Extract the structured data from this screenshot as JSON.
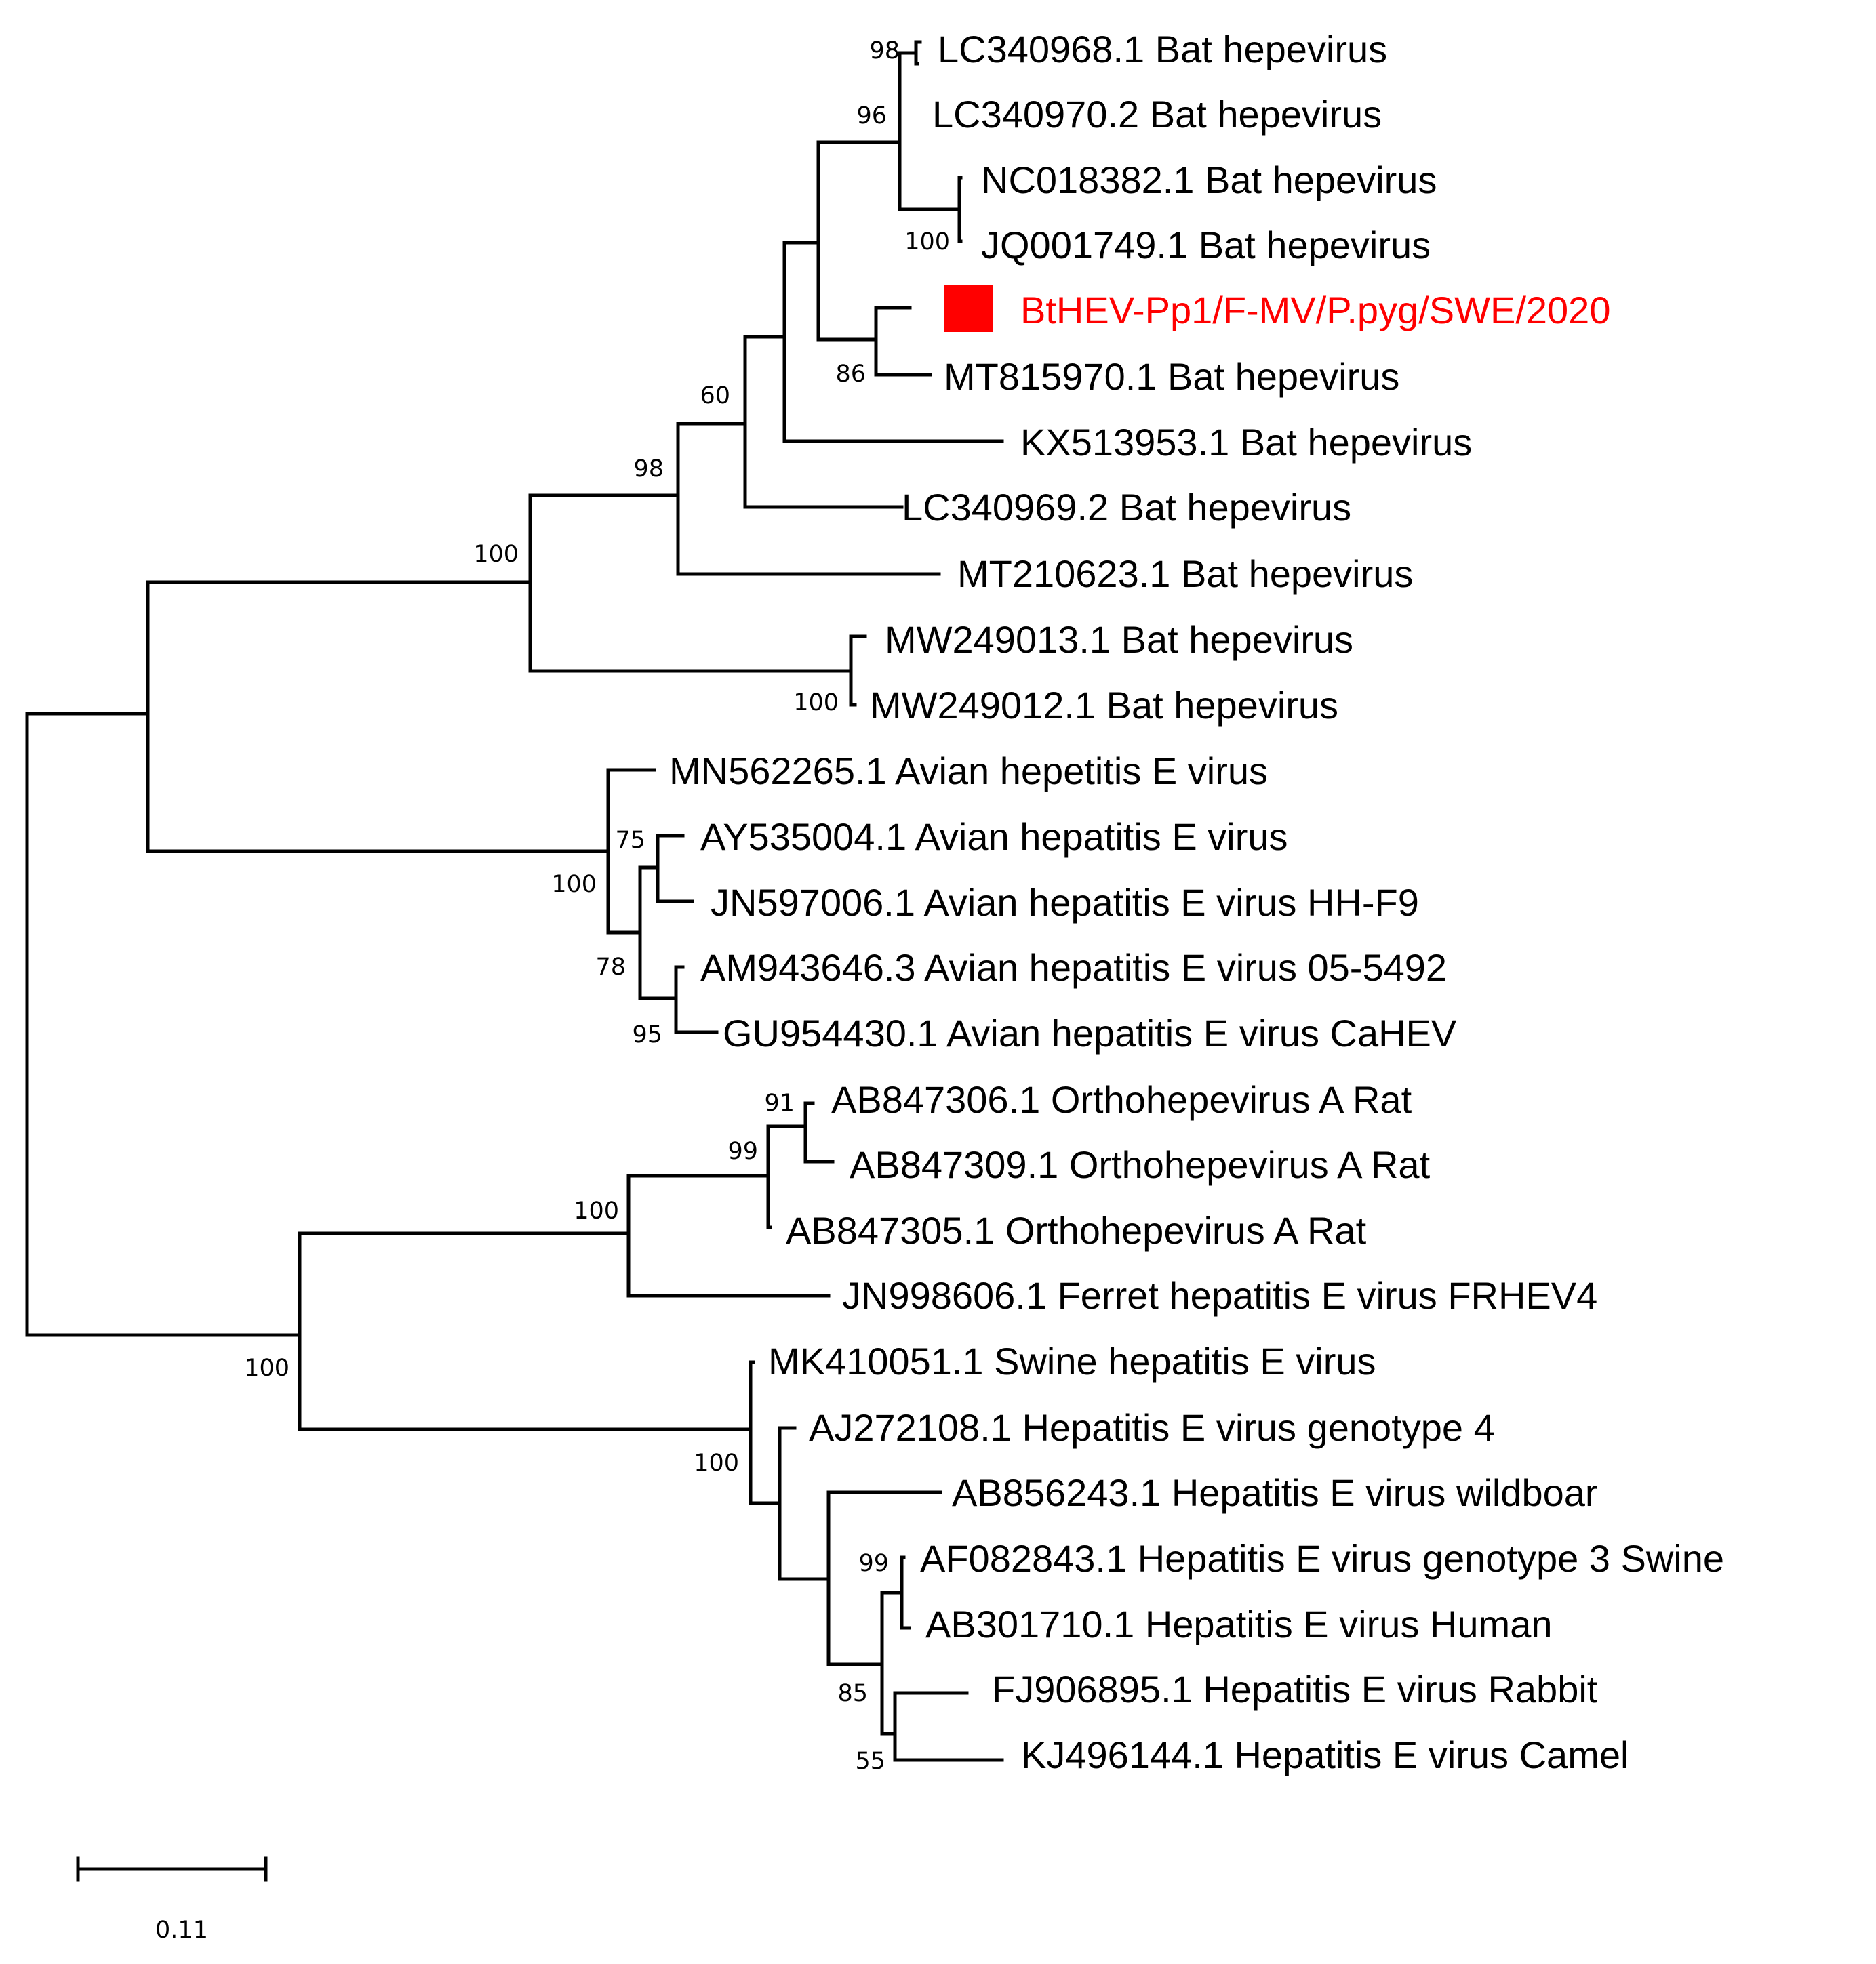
{
  "figure": {
    "type": "phylogenetic tree",
    "highlight_color": "#ff0000",
    "line_color": "#000000"
  },
  "taxa": [
    {
      "id": "LC340968",
      "label": "LC340968.1 Bat hepevirus"
    },
    {
      "id": "LC340970",
      "label": "LC340970.2 Bat hepevirus"
    },
    {
      "id": "NC018382",
      "label": "NC018382.1 Bat hepevirus"
    },
    {
      "id": "JQ001749",
      "label": "JQ001749.1 Bat hepevirus"
    },
    {
      "id": "BtHEV",
      "label": "BtHEV-Pp1/F-MV/P.pyg/SWE/2020",
      "highlighted": true,
      "marker": "red-square"
    },
    {
      "id": "MT815970",
      "label": "MT815970.1 Bat hepevirus"
    },
    {
      "id": "KX513953",
      "label": "KX513953.1 Bat hepevirus"
    },
    {
      "id": "LC340969",
      "label": "LC340969.2 Bat hepevirus"
    },
    {
      "id": "MT210623",
      "label": "MT210623.1 Bat hepevirus"
    },
    {
      "id": "MW249013",
      "label": "MW249013.1 Bat hepevirus"
    },
    {
      "id": "MW249012",
      "label": "MW249012.1 Bat hepevirus"
    },
    {
      "id": "MN562265",
      "label": "MN562265.1 Avian hepetitis E virus"
    },
    {
      "id": "AY535004",
      "label": "AY535004.1 Avian hepatitis E virus"
    },
    {
      "id": "JN597006",
      "label": "JN597006.1 Avian hepatitis E virus HH-F9"
    },
    {
      "id": "AM943646",
      "label": "AM943646.3 Avian hepatitis E virus 05-5492"
    },
    {
      "id": "GU954430",
      "label": "GU954430.1 Avian hepatitis E virus CaHEV"
    },
    {
      "id": "AB847306",
      "label": "AB847306.1 Orthohepevirus A Rat"
    },
    {
      "id": "AB847309",
      "label": "AB847309.1 Orthohepevirus A Rat"
    },
    {
      "id": "AB847305",
      "label": "AB847305.1 Orthohepevirus A Rat"
    },
    {
      "id": "JN998606",
      "label": "JN998606.1 Ferret hepatitis E virus FRHEV4"
    },
    {
      "id": "MK410051",
      "label": "MK410051.1 Swine hepatitis E virus"
    },
    {
      "id": "AJ272108",
      "label": "AJ272108.1 Hepatitis E virus genotype 4"
    },
    {
      "id": "AB856243",
      "label": "AB856243.1 Hepatitis E virus wildboar"
    },
    {
      "id": "AF082843",
      "label": "AF082843.1 Hepatitis E virus genotype 3 Swine"
    },
    {
      "id": "AB301710",
      "label": "AB301710.1 Hepatitis E virus Human"
    },
    {
      "id": "FJ906895",
      "label": "FJ906895.1 Hepatitis E virus Rabbit"
    },
    {
      "id": "KJ496144",
      "label": "KJ496144.1 Hepatitis E virus Camel"
    }
  ],
  "bootstrap_values": [
    {
      "node": "LC340968+LC340970",
      "value": "98"
    },
    {
      "node": "Bat-subclade-A",
      "value": "96"
    },
    {
      "node": "NC018382+JQ001749",
      "value": "100"
    },
    {
      "node": "BtHEV+MT815970",
      "value": "86"
    },
    {
      "node": "Bat-core",
      "value": "60"
    },
    {
      "node": "Bat-main",
      "value": "98"
    },
    {
      "node": "Bat-all",
      "value": "100"
    },
    {
      "node": "MW249013+MW249012",
      "value": "100"
    },
    {
      "node": "AY535004+JN597006",
      "value": "75"
    },
    {
      "node": "Avian-all",
      "value": "100"
    },
    {
      "node": "Avian-inner",
      "value": "78"
    },
    {
      "node": "AM943646+GU954430",
      "value": "95"
    },
    {
      "node": "AB847306+AB847309",
      "value": "91"
    },
    {
      "node": "Rat-all",
      "value": "99"
    },
    {
      "node": "Rat+Ferret",
      "value": "100"
    },
    {
      "node": "Rat-Ferret-Swine",
      "value": "100"
    },
    {
      "node": "HEV-all",
      "value": "100"
    },
    {
      "node": "AF082843+AB301710",
      "value": "99"
    },
    {
      "node": "HEV-inner",
      "value": "85"
    },
    {
      "node": "FJ906895+KJ496144",
      "value": "55"
    }
  ],
  "scale_bar": {
    "label": "0.11",
    "value": 0.11
  }
}
